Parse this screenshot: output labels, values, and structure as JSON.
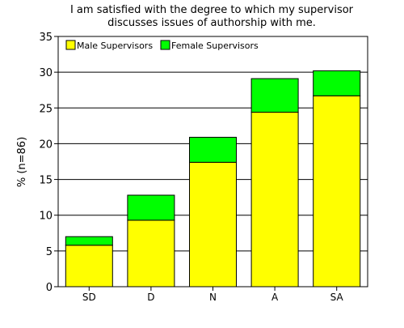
{
  "chart_data": {
    "type": "bar",
    "stacked": true,
    "title": [
      "I am satisfied with the degree to which my supervisor",
      "discusses issues of authorship with me."
    ],
    "xlabel": "",
    "ylabel": "% (n=86)",
    "ylim": [
      0,
      35
    ],
    "yticks": [
      0,
      5,
      10,
      15,
      20,
      25,
      30,
      35
    ],
    "grid": true,
    "legend_position": "top-left",
    "categories": [
      "SD",
      "D",
      "N",
      "A",
      "SA"
    ],
    "series": [
      {
        "name": "Male Supervisors",
        "color": "#ffff00",
        "values": [
          5.8,
          9.3,
          17.4,
          24.4,
          26.7
        ]
      },
      {
        "name": "Female Supervisors",
        "color": "#00ff00",
        "values": [
          1.2,
          3.5,
          3.5,
          4.7,
          3.5
        ]
      }
    ]
  }
}
